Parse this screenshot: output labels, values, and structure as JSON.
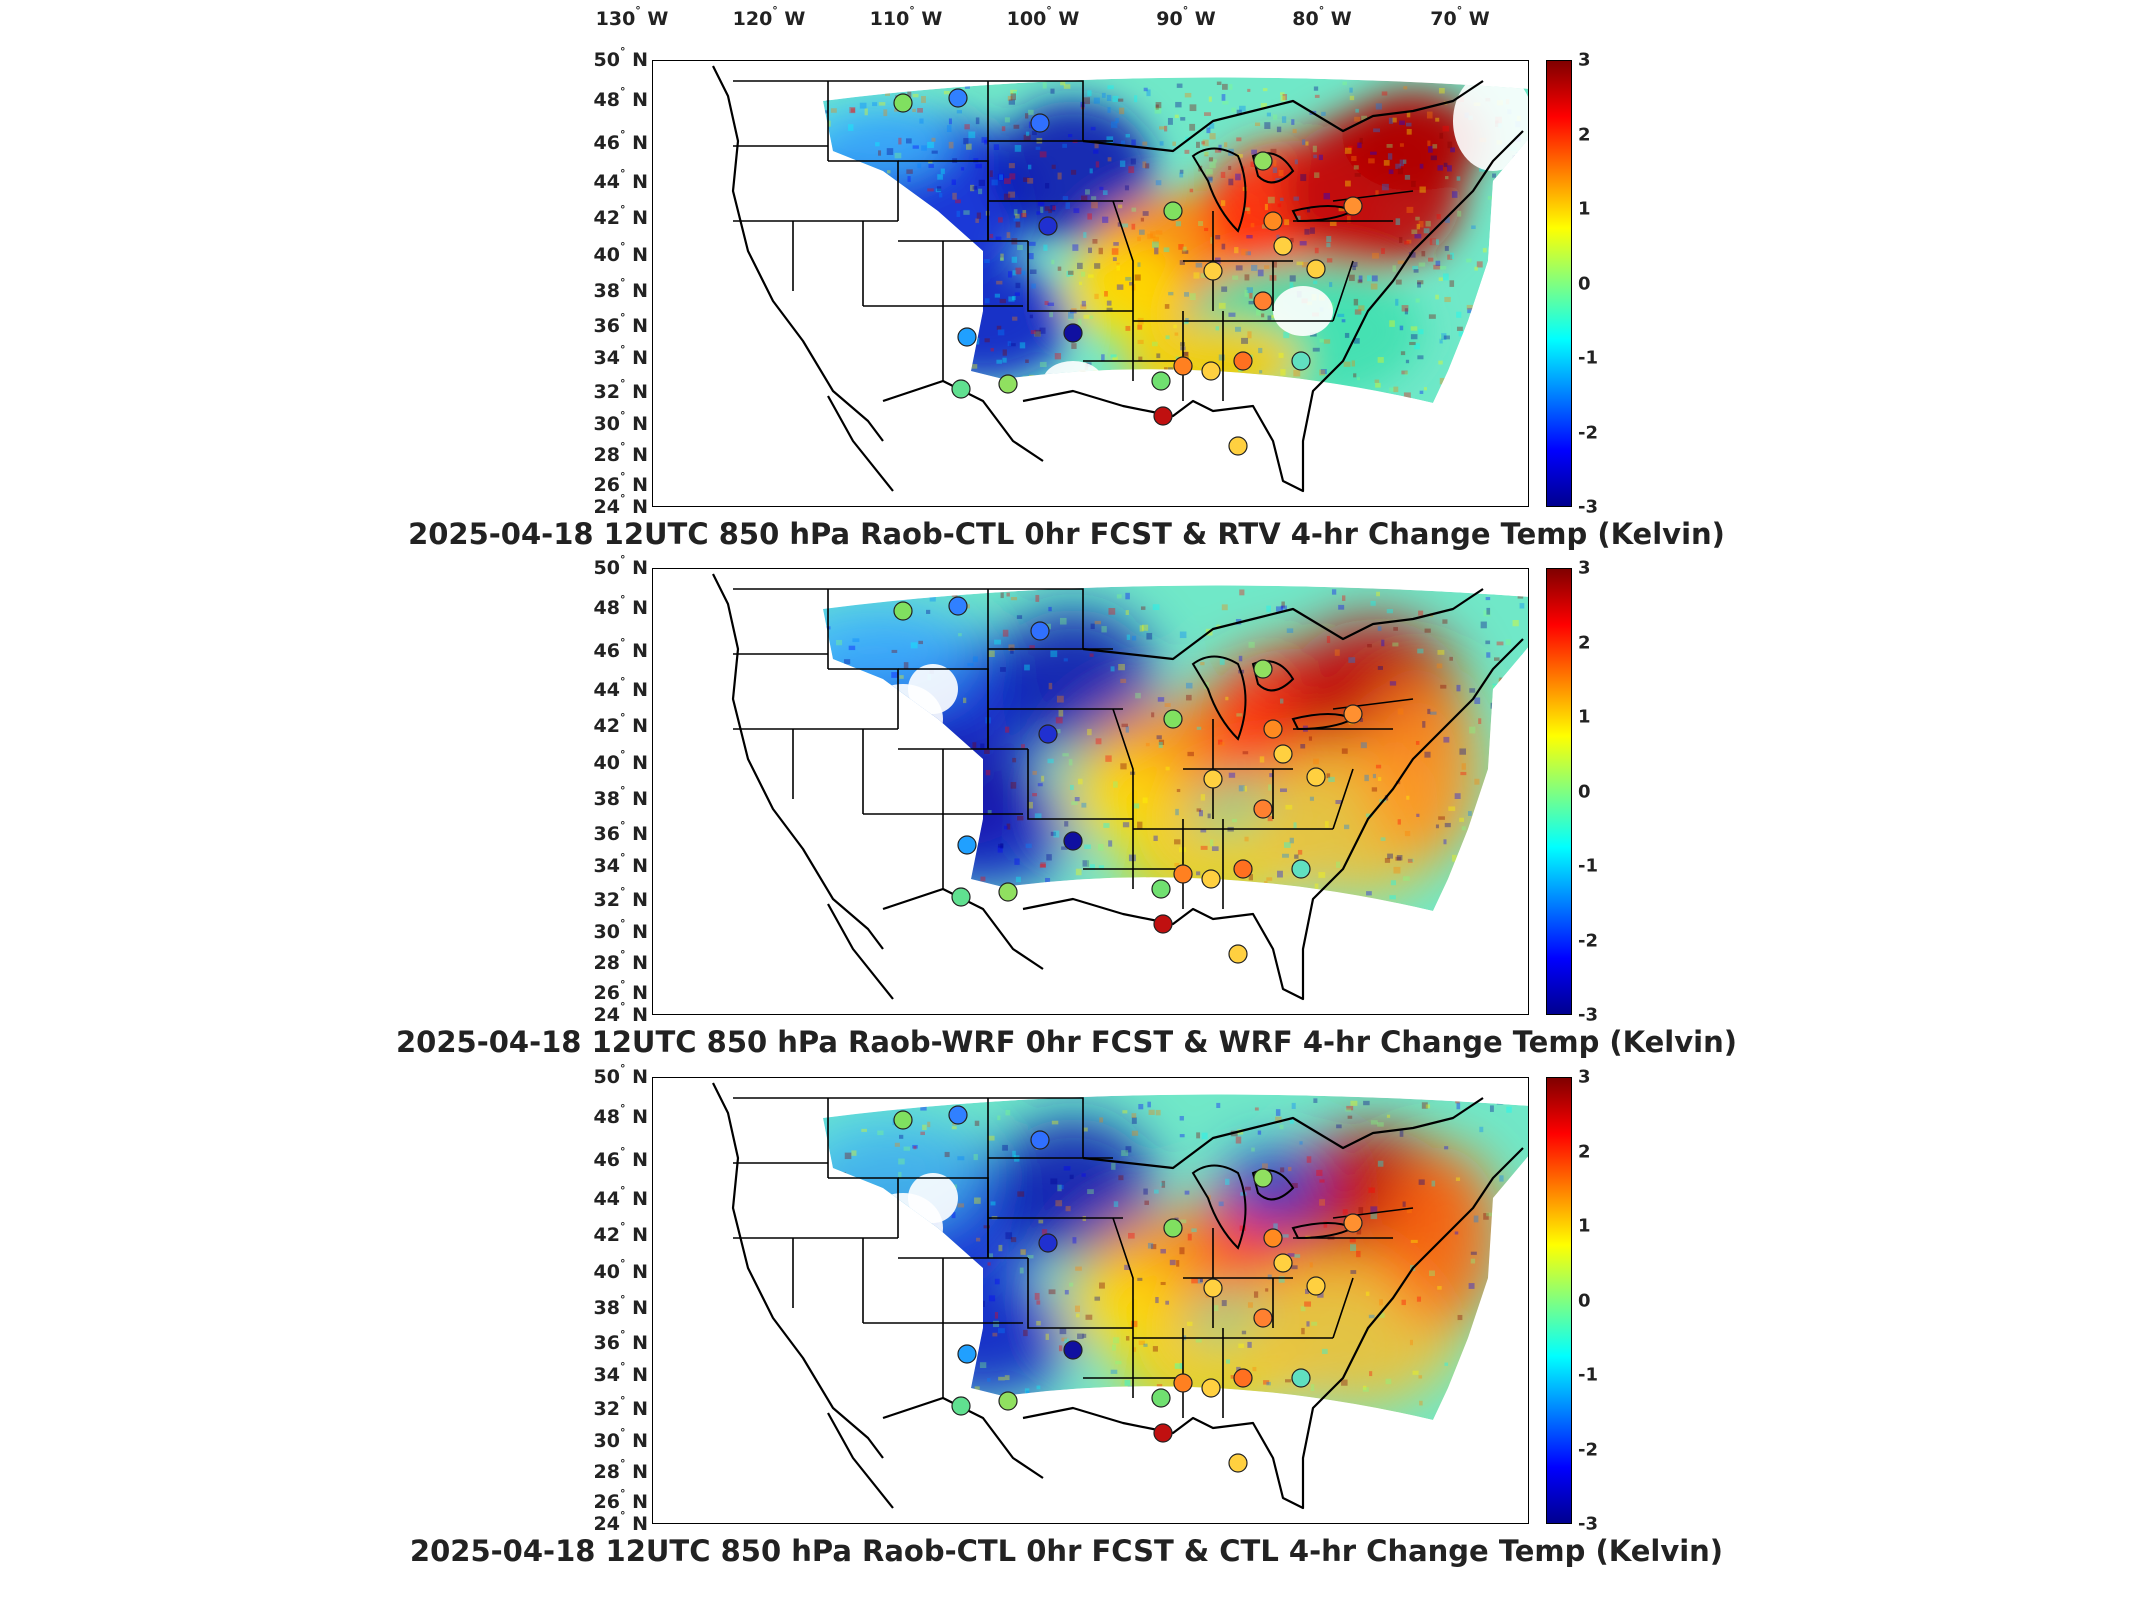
{
  "longitude_labels": [
    "130° W",
    "120° W",
    "110° W",
    "100° W",
    "90° W",
    "80° W",
    "70° W"
  ],
  "latitude_labels": [
    "50° N",
    "48° N",
    "46° N",
    "44° N",
    "42° N",
    "40° N",
    "38° N",
    "36° N",
    "34° N",
    "32° N",
    "30° N",
    "28° N",
    "26° N",
    "24° N"
  ],
  "colorbar": {
    "range": [
      -3,
      3
    ],
    "ticks": [
      "3",
      "2",
      "1",
      "0",
      "-1",
      "-2",
      "-3"
    ],
    "colormap": [
      "#00008f",
      "#0000ff",
      "#0080ff",
      "#00ffff",
      "#80ff80",
      "#ffff00",
      "#ff8000",
      "#ff0000",
      "#800000"
    ]
  },
  "panels": [
    {
      "title": "2025-04-18 12UTC 850 hPa Raob-CTL 0hr FCST & RTV 4-hr Change Temp (Kelvin)"
    },
    {
      "title": "2025-04-18 12UTC 850 hPa Raob-WRF 0hr FCST & WRF 4-hr Change Temp (Kelvin)"
    },
    {
      "title": "2025-04-18 12UTC 850 hPa Raob-CTL 0hr FCST & CTL 4-hr Change Temp (Kelvin)"
    }
  ]
}
